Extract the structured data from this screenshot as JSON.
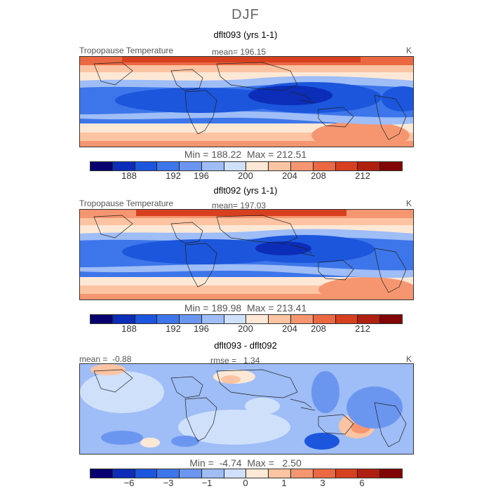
{
  "suptitle": "DJF",
  "colors": {
    "temp": [
      "#08006e",
      "#0c2db8",
      "#1b56dc",
      "#3d76ea",
      "#6b96f0",
      "#9fbdf6",
      "#cfe0fb",
      "#fde8d6",
      "#fcc4a2",
      "#f69670",
      "#ea6943",
      "#d7401f",
      "#b02010",
      "#820404"
    ],
    "diff": [
      "#08006e",
      "#0c2db8",
      "#1b56dc",
      "#3d76ea",
      "#6b96f0",
      "#9fbdf6",
      "#cfe0fb",
      "#fde8d6",
      "#fcc4a2",
      "#f69670",
      "#ea6943",
      "#d7401f",
      "#b02010",
      "#820404"
    ]
  },
  "panels": [
    {
      "title": "dflt093 (yrs 1-1)",
      "left_label": "Tropopause Temperature",
      "stat_label": "mean= 196.15",
      "units": "K",
      "minmax": "Min = 188.22  Max = 212.51",
      "colorbar_ticks": [
        "188",
        "192",
        "196",
        "200",
        "204",
        "208",
        "212"
      ]
    },
    {
      "title": "dflt092 (yrs 1-1)",
      "left_label": "Tropopause Temperature",
      "stat_label": "mean= 197.03",
      "units": "K",
      "minmax": "Min = 189.98  Max = 213.41",
      "colorbar_ticks": [
        "188",
        "192",
        "196",
        "200",
        "204",
        "208",
        "212"
      ]
    },
    {
      "title": "dflt093 - dflt092",
      "left_label": "mean =  -0.88",
      "stat_label": "rmse =   1.34",
      "units": "K",
      "minmax": "Min =  -4.74  Max =   2.50",
      "colorbar_ticks": [
        "−6",
        "−3",
        "−1",
        "0",
        "1",
        "3",
        "6"
      ]
    }
  ],
  "chart_data": [
    {
      "type": "heatmap",
      "title": "dflt093 (yrs 1-1)",
      "variable": "Tropopause Temperature",
      "units": "K",
      "mean": 196.15,
      "min": 188.22,
      "max": 212.51,
      "contour_levels": [
        186,
        188,
        190,
        192,
        194,
        196,
        198,
        200,
        202,
        204,
        206,
        208,
        210,
        212,
        214
      ],
      "colorbar_ticks": [
        188,
        192,
        196,
        200,
        204,
        208,
        212
      ]
    },
    {
      "type": "heatmap",
      "title": "dflt092 (yrs 1-1)",
      "variable": "Tropopause Temperature",
      "units": "K",
      "mean": 197.03,
      "min": 189.98,
      "max": 213.41,
      "contour_levels": [
        186,
        188,
        190,
        192,
        194,
        196,
        198,
        200,
        202,
        204,
        206,
        208,
        210,
        212,
        214
      ],
      "colorbar_ticks": [
        188,
        192,
        196,
        200,
        204,
        208,
        212
      ]
    },
    {
      "type": "heatmap",
      "title": "dflt093 - dflt092",
      "units": "K",
      "mean": -0.88,
      "rmse": 1.34,
      "min": -4.74,
      "max": 2.5,
      "colorbar_ticks": [
        -6,
        -3,
        -1,
        0,
        1,
        3,
        6
      ]
    }
  ]
}
